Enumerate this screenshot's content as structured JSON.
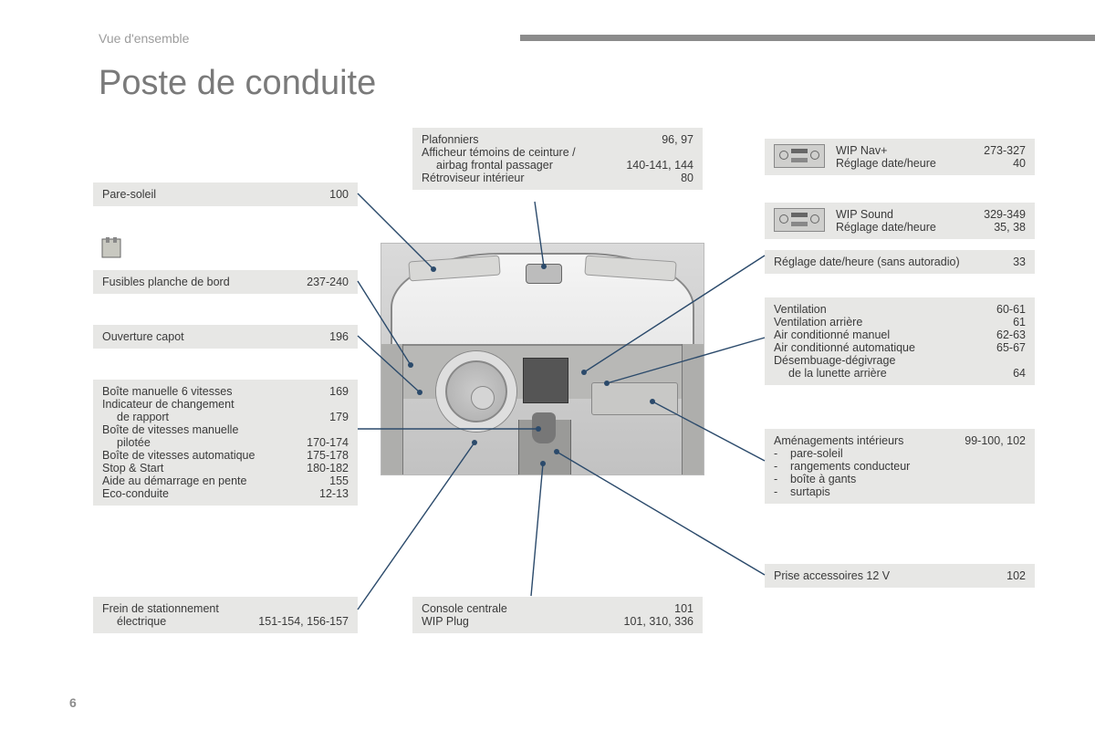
{
  "breadcrumb": "Vue d'ensemble",
  "title": "Poste de conduite",
  "page_number": "6",
  "colors": {
    "box_bg": "#e7e7e5",
    "leader": "#2b4a6b",
    "text": "#3a3a3a",
    "muted": "#9c9c9c"
  },
  "boxes": {
    "pare_soleil": {
      "label": "Pare-soleil",
      "pages": "100"
    },
    "fusibles": {
      "label": "Fusibles planche de bord",
      "pages": "237-240"
    },
    "capot": {
      "label": "Ouverture capot",
      "pages": "196"
    },
    "transmission": [
      {
        "label": "Boîte manuelle 6 vitesses",
        "pages": "169"
      },
      {
        "label": "Indicateur de changement",
        "cont": "de rapport",
        "pages": "179"
      },
      {
        "label": "Boîte de vitesses manuelle",
        "cont": "pilotée",
        "pages": "170-174"
      },
      {
        "label": "Boîte de vitesses automatique",
        "pages": "175-178"
      },
      {
        "label": "Stop & Start",
        "pages": "180-182"
      },
      {
        "label": "Aide au démarrage en pente",
        "pages": "155"
      },
      {
        "label": "Eco-conduite",
        "pages": "12-13"
      }
    ],
    "frein": {
      "label": "Frein de stationnement",
      "cont": "électrique",
      "pages": "151-154, 156-157"
    },
    "plafonniers": [
      {
        "label": "Plafonniers",
        "pages": "96, 97"
      },
      {
        "label": "Afficheur témoins de ceinture /",
        "cont": "airbag frontal passager",
        "pages": "140-141, 144"
      },
      {
        "label": "Rétroviseur intérieur",
        "pages": "80"
      }
    ],
    "console": [
      {
        "label": "Console centrale",
        "pages": "101"
      },
      {
        "label": "WIP Plug",
        "pages": "101, 310, 336"
      }
    ],
    "wipnav": [
      {
        "label": "WIP Nav+",
        "pages": "273-327"
      },
      {
        "label": "Réglage date/heure",
        "pages": "40"
      }
    ],
    "wipsound": [
      {
        "label": "WIP Sound",
        "pages": "329-349"
      },
      {
        "label": "Réglage date/heure",
        "pages": "35, 38"
      }
    ],
    "reglage_sans": {
      "label": "Réglage date/heure (sans autoradio)",
      "pages": "33"
    },
    "ventilation": [
      {
        "label": "Ventilation",
        "pages": "60-61"
      },
      {
        "label": "Ventilation arrière",
        "pages": "61"
      },
      {
        "label": "Air conditionné manuel",
        "pages": "62-63"
      },
      {
        "label": "Air conditionné automatique",
        "pages": "65-67"
      },
      {
        "label": "Désembuage-dégivrage",
        "cont": "de la lunette arrière",
        "pages": "64"
      }
    ],
    "amenagements": {
      "label": "Aménagements intérieurs",
      "pages": "99-100, 102",
      "items": [
        "pare-soleil",
        "rangements conducteur",
        "boîte à gants",
        "surtapis"
      ]
    },
    "prise12v": {
      "label": "Prise accessoires 12 V",
      "pages": "102"
    }
  }
}
